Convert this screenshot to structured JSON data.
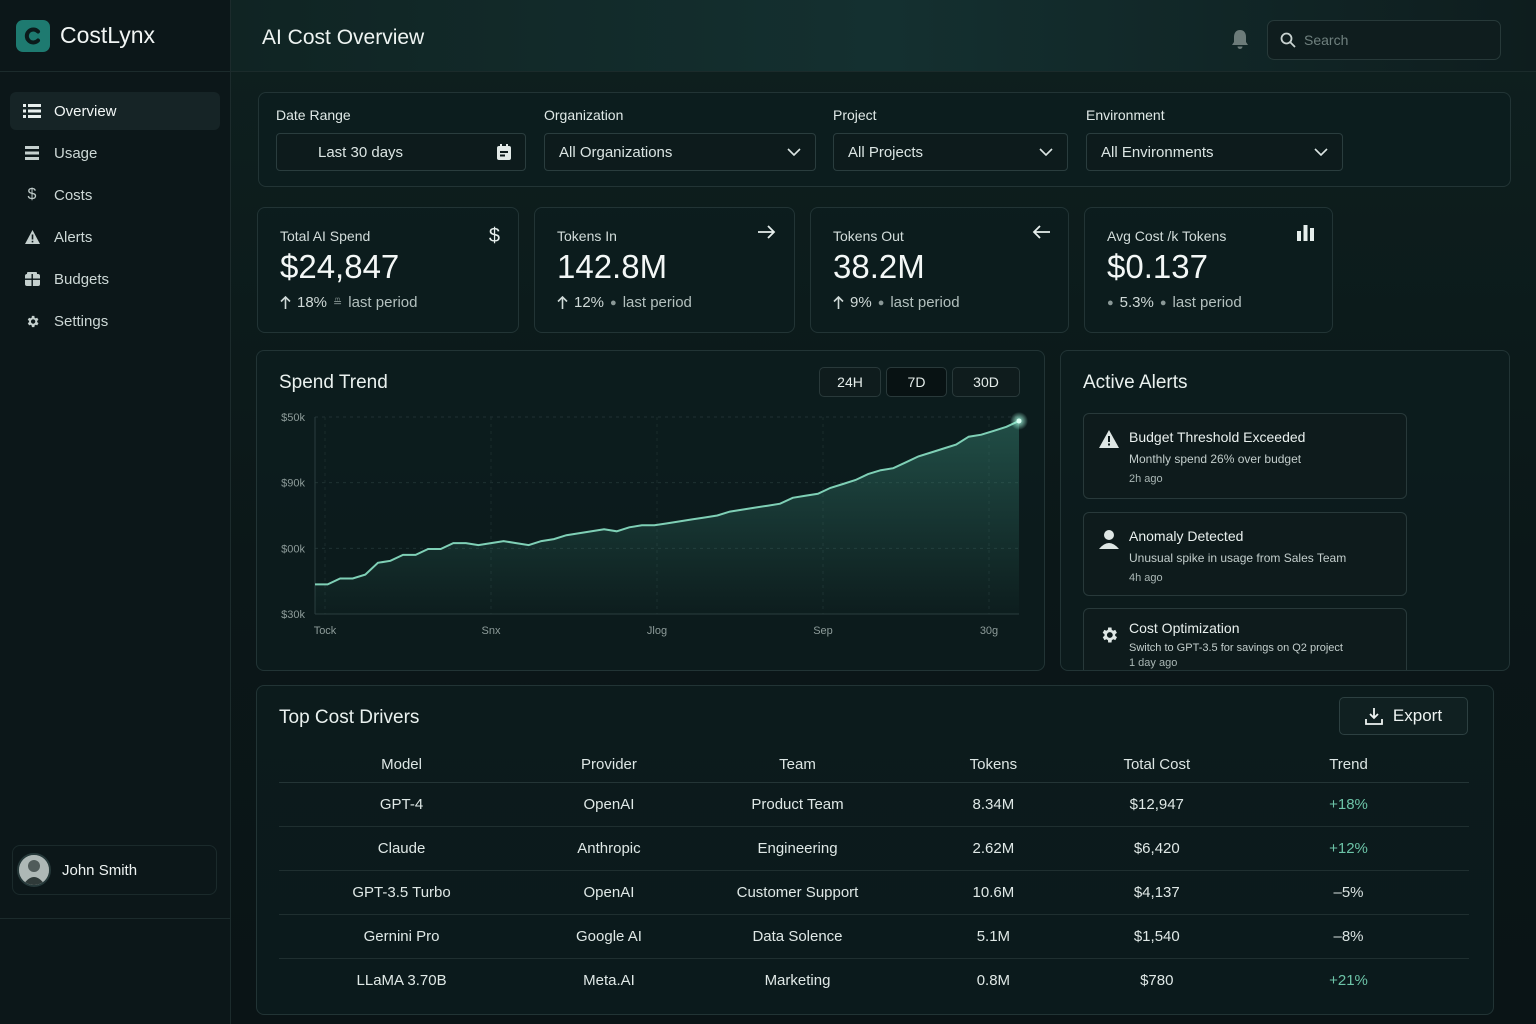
{
  "app": {
    "name": "CostLynx",
    "page_title": "AI Cost Overview"
  },
  "search": {
    "placeholder": "Search"
  },
  "sidebar": {
    "items": [
      {
        "label": "Overview",
        "icon": "list-icon",
        "active": true
      },
      {
        "label": "Usage",
        "icon": "stack-icon"
      },
      {
        "label": "Costs",
        "icon": "dollar-icon"
      },
      {
        "label": "Alerts",
        "icon": "warning-icon"
      },
      {
        "label": "Budgets",
        "icon": "wallet-icon"
      },
      {
        "label": "Settings",
        "icon": "gear-icon"
      }
    ],
    "user": {
      "name": "John Smith"
    }
  },
  "filters": {
    "date_range": {
      "label": "Date Range",
      "value": "Last 30 days"
    },
    "organization": {
      "label": "Organization",
      "value": "All Organizations"
    },
    "project": {
      "label": "Project",
      "value": "All Projects"
    },
    "environment": {
      "label": "Environment",
      "value": "All Environments"
    }
  },
  "kpis": [
    {
      "label": "Total AI Spend",
      "value": "$24,847",
      "delta": "18%",
      "period": "last period",
      "icon": "dollar-icon"
    },
    {
      "label": "Tokens In",
      "value": "142.8M",
      "delta": "12%",
      "period": "last period",
      "icon": "arrow-right-icon"
    },
    {
      "label": "Tokens Out",
      "value": "38.2M",
      "delta": "9%",
      "period": "last period",
      "icon": "arrow-left-icon"
    },
    {
      "label": "Avg Cost /k Tokens",
      "value": "$0.137",
      "delta": "5.3%",
      "period": "last period",
      "icon": "bar-chart-icon"
    }
  ],
  "trend": {
    "title": "Spend Trend",
    "ranges": [
      "24H",
      "7D",
      "30D"
    ],
    "active_range": "7D"
  },
  "chart_data": {
    "type": "area",
    "title": "Spend Trend",
    "y_tick_labels": [
      "$50k",
      "$90k",
      "$00k",
      "$30k"
    ],
    "x_tick_labels": [
      "Tock",
      "Snx",
      "Jlog",
      "Sep",
      "30g"
    ],
    "ylim": [
      0,
      100
    ],
    "values": [
      15,
      15,
      18,
      18,
      20,
      26,
      27,
      30,
      30,
      33,
      33,
      36,
      36,
      35,
      36,
      37,
      36,
      35,
      37,
      38,
      40,
      41,
      42,
      43,
      42,
      44,
      45,
      45,
      46,
      47,
      48,
      49,
      50,
      52,
      53,
      54,
      55,
      56,
      59,
      60,
      61,
      64,
      66,
      68,
      71,
      73,
      74,
      77,
      80,
      82,
      84,
      86,
      90,
      91,
      93,
      95,
      98
    ]
  },
  "alerts": {
    "title": "Active Alerts",
    "items": [
      {
        "title": "Budget Threshold Exceeded",
        "desc": "Monthly spend 26% over budget",
        "time": "2h ago",
        "icon": "warning-icon"
      },
      {
        "title": "Anomaly Detected",
        "desc": "Unusual spike in usage from Sales Team",
        "time": "4h ago",
        "icon": "user-icon"
      },
      {
        "title": "Cost Optimization",
        "desc": "Switch to GPT-3.5 for savings on Q2 project",
        "time": "1 day ago",
        "icon": "gear-icon"
      }
    ]
  },
  "drivers": {
    "title": "Top Cost Drivers",
    "export_label": "Export",
    "columns": [
      "Model",
      "Provider",
      "Team",
      "Tokens",
      "Total Cost",
      "Trend"
    ],
    "rows": [
      [
        "GPT-4",
        "OpenAI",
        "Product Team",
        "8.34M",
        "$12,947",
        "+18%"
      ],
      [
        "Claude",
        "Anthropic",
        "Engineering",
        "2.62M",
        "$6,420",
        "+12%"
      ],
      [
        "GPT-3.5 Turbo",
        "OpenAI",
        "Customer Support",
        "10.6M",
        "$4,137",
        "–5%"
      ],
      [
        "Gernini Pro",
        "Google AI",
        "Data Solence",
        "5.1M",
        "$1,540",
        "–8%"
      ],
      [
        "LLaMA 3.70B",
        "Meta.AI",
        "Marketing",
        "0.8M",
        "$780",
        "+21%"
      ]
    ]
  },
  "colors": {
    "accent": "#6cc3a7",
    "brand": "#1e7a70",
    "line": "#7fd0b6"
  }
}
